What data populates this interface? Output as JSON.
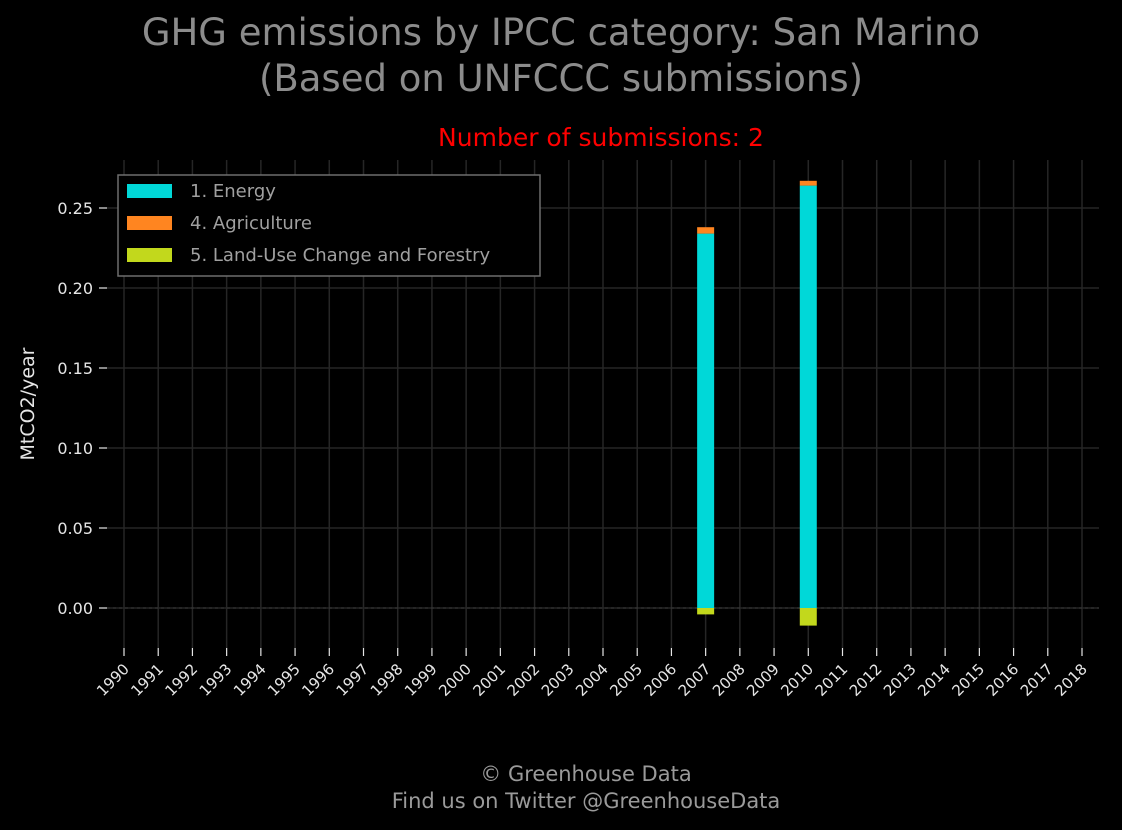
{
  "header": {
    "title_line1": "GHG emissions by IPCC category: San Marino",
    "title_line2": "(Based on UNFCCC submissions)",
    "subtitle": "Number of submissions: 2"
  },
  "footer": {
    "line1": "© Greenhouse Data",
    "line2": "Find us on Twitter @GreenhouseData"
  },
  "chart_data": {
    "type": "bar",
    "stacked": true,
    "categories": [
      "1990",
      "1991",
      "1992",
      "1993",
      "1994",
      "1995",
      "1996",
      "1997",
      "1998",
      "1999",
      "2000",
      "2001",
      "2002",
      "2003",
      "2004",
      "2005",
      "2006",
      "2007",
      "2008",
      "2009",
      "2010",
      "2011",
      "2012",
      "2013",
      "2014",
      "2015",
      "2016",
      "2017",
      "2018"
    ],
    "series": [
      {
        "name": "1. Energy",
        "color": "#00d8d8",
        "values": [
          null,
          null,
          null,
          null,
          null,
          null,
          null,
          null,
          null,
          null,
          null,
          null,
          null,
          null,
          null,
          null,
          null,
          0.234,
          null,
          null,
          0.264,
          null,
          null,
          null,
          null,
          null,
          null,
          null,
          null
        ]
      },
      {
        "name": "4. Agriculture",
        "color": "#ff8520",
        "values": [
          null,
          null,
          null,
          null,
          null,
          null,
          null,
          null,
          null,
          null,
          null,
          null,
          null,
          null,
          null,
          null,
          null,
          0.004,
          null,
          null,
          0.003,
          null,
          null,
          null,
          null,
          null,
          null,
          null,
          null
        ]
      },
      {
        "name": "5. Land-Use Change and Forestry",
        "color": "#c2d81c",
        "values": [
          null,
          null,
          null,
          null,
          null,
          null,
          null,
          null,
          null,
          null,
          null,
          null,
          null,
          null,
          null,
          null,
          null,
          -0.004,
          null,
          null,
          -0.011,
          null,
          null,
          null,
          null,
          null,
          null,
          null,
          null
        ]
      }
    ],
    "ylabel": "MtCO2/year",
    "xlabel": "",
    "ylim": [
      -0.025,
      0.28
    ],
    "yticks": [
      "0.00",
      "0.05",
      "0.10",
      "0.15",
      "0.20",
      "0.25"
    ],
    "grid": true,
    "legend_position": "top-left",
    "background": "#000000",
    "grid_color": "#262626",
    "text_color": "#e6e6e6"
  }
}
